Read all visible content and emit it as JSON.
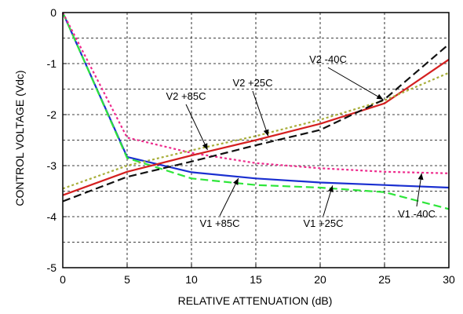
{
  "chart_data": {
    "type": "line",
    "xlabel": "RELATIVE ATTENUATION (dB)",
    "ylabel": "CONTROL VOLTAGE (Vdc)",
    "xlim": [
      0,
      30
    ],
    "ylim": [
      -5,
      0
    ],
    "xticks": [
      0,
      5,
      10,
      15,
      20,
      25,
      30
    ],
    "yticks": [
      0,
      -1,
      -2,
      -3,
      -4,
      -5
    ],
    "grid": true,
    "grid_style": "dashed",
    "series": [
      {
        "name": "V1 +85C",
        "color": "#1a2fd0",
        "style": "solid",
        "x": [
          0,
          5,
          10,
          15,
          20,
          25,
          30
        ],
        "y": [
          0,
          -2.83,
          -3.13,
          -3.25,
          -3.33,
          -3.38,
          -3.43
        ]
      },
      {
        "name": "V1 +25C",
        "color": "#2ee63a",
        "style": "dashed",
        "x": [
          0,
          5,
          10,
          15,
          20,
          25,
          30
        ],
        "y": [
          0,
          -2.85,
          -3.25,
          -3.38,
          -3.43,
          -3.52,
          -3.85
        ]
      },
      {
        "name": "V1 -40C",
        "color": "#ee2a8c",
        "style": "dotted",
        "x": [
          0,
          5,
          10,
          15,
          20,
          25,
          30
        ],
        "y": [
          0,
          -2.45,
          -2.75,
          -2.95,
          -3.05,
          -3.12,
          -3.15
        ]
      },
      {
        "name": "V2 +85C",
        "color": "#d42020",
        "style": "solid",
        "x": [
          0,
          5,
          10,
          15,
          20,
          25,
          30
        ],
        "y": [
          -3.58,
          -3.12,
          -2.8,
          -2.5,
          -2.18,
          -1.78,
          -0.92
        ]
      },
      {
        "name": "V2 +25C",
        "color": "#a8ae3a",
        "style": "dotted",
        "x": [
          0,
          5,
          10,
          15,
          20,
          25,
          30
        ],
        "y": [
          -3.45,
          -3.0,
          -2.7,
          -2.42,
          -2.1,
          -1.72,
          -1.18
        ]
      },
      {
        "name": "V2 -40C",
        "color": "#111111",
        "style": "dashed",
        "x": [
          0,
          5,
          10,
          15,
          20,
          25,
          30
        ],
        "y": [
          -3.7,
          -3.22,
          -2.92,
          -2.6,
          -2.3,
          -1.7,
          -0.62
        ]
      }
    ],
    "annotations": [
      {
        "text": "V2 -40C",
        "x_point": 25,
        "y_point": -1.72
      },
      {
        "text": "V2 +25C",
        "x_point": 16,
        "y_point": -2.45
      },
      {
        "text": "V2 +85C",
        "x_point": 11.3,
        "y_point": -2.72
      },
      {
        "text": "V1 +85C",
        "x_point": 13.7,
        "y_point": -3.22
      },
      {
        "text": "V1 +25C",
        "x_point": 21,
        "y_point": -3.36
      },
      {
        "text": "V1 -40C",
        "x_point": 27.9,
        "y_point": -3.12
      }
    ]
  }
}
